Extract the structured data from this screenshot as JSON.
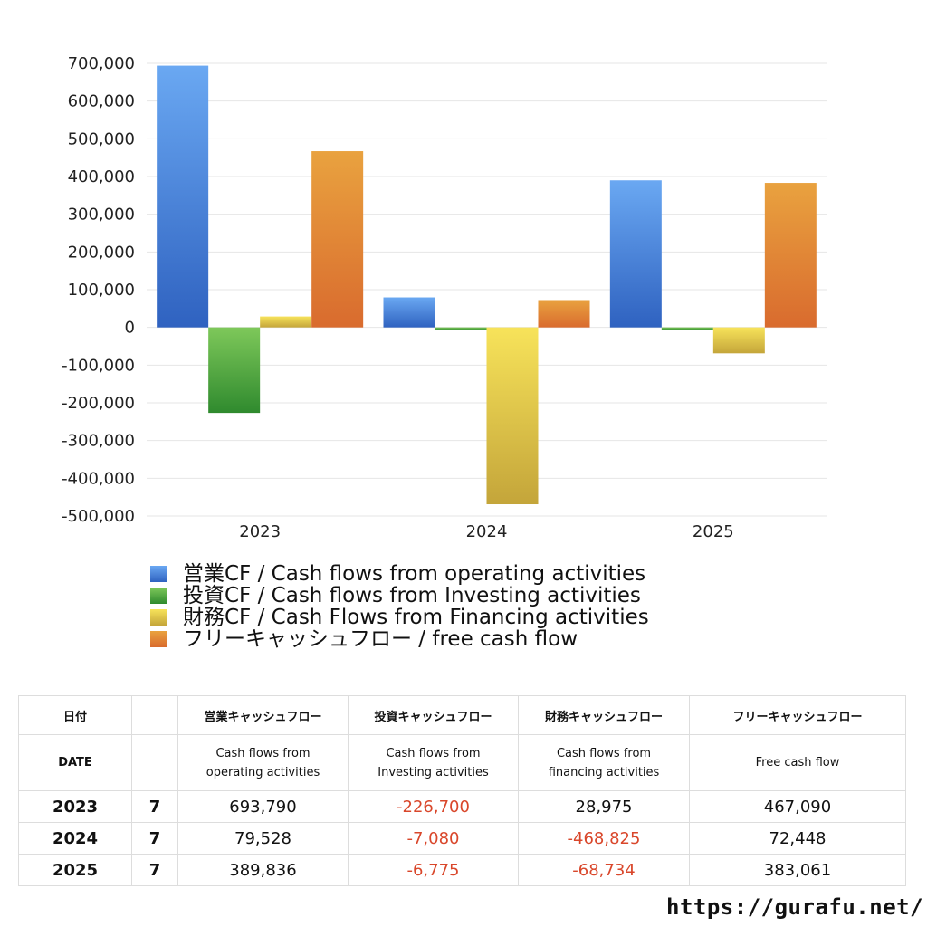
{
  "chart_data": {
    "type": "bar",
    "categories": [
      "2023",
      "2024",
      "2025"
    ],
    "series": [
      {
        "name": "営業CF / Cash flows from operating activities",
        "values": [
          693790,
          79528,
          389836
        ],
        "color": "#3f7fd9"
      },
      {
        "name": "投資CF / Cash flows from Investing activities",
        "values": [
          -226700,
          -7080,
          -6775
        ],
        "color": "#4caa3e"
      },
      {
        "name": "財務CF / Cash Flows from Financing activities",
        "values": [
          28975,
          -468825,
          -68734
        ],
        "color": "#e3c63c"
      },
      {
        "name": "フリーキャッシュフロー / free cash flow",
        "values": [
          467090,
          72448,
          383061
        ],
        "color": "#e0833a"
      }
    ],
    "ylim": [
      -500000,
      700000
    ],
    "yticks": [
      "700,000",
      "600,000",
      "500,000",
      "400,000",
      "300,000",
      "200,000",
      "100,000",
      "0",
      "-100,000",
      "-200,000",
      "-300,000",
      "-400,000",
      "-500,000"
    ],
    "ytick_values": [
      700000,
      600000,
      500000,
      400000,
      300000,
      200000,
      100000,
      0,
      -100000,
      -200000,
      -300000,
      -400000,
      -500000
    ],
    "grid": true,
    "legend_position": "bottom",
    "xlabel": "",
    "ylabel": ""
  },
  "table": {
    "header1": [
      "日付",
      "",
      "営業キャッシュフロー",
      "投資キャッシュフロー",
      "財務キャッシュフロー",
      "フリーキャッシュフロー"
    ],
    "header2": [
      "DATE",
      "",
      "Cash flows from\noperating activities",
      "Cash flows from\nInvesting activities",
      "Cash flows from\nfinancing activities",
      "Free cash flow"
    ],
    "rows": [
      {
        "year": "2023",
        "month": "7",
        "op": "693,790",
        "inv": "-226,700",
        "fin": "28,975",
        "fcf": "467,090"
      },
      {
        "year": "2024",
        "month": "7",
        "op": "79,528",
        "inv": "-7,080",
        "fin": "-468,825",
        "fcf": "72,448"
      },
      {
        "year": "2025",
        "month": "7",
        "op": "389,836",
        "inv": "-6,775",
        "fin": "-68,734",
        "fcf": "383,061"
      }
    ]
  },
  "footer": {
    "url": "https://gurafu.net/"
  }
}
